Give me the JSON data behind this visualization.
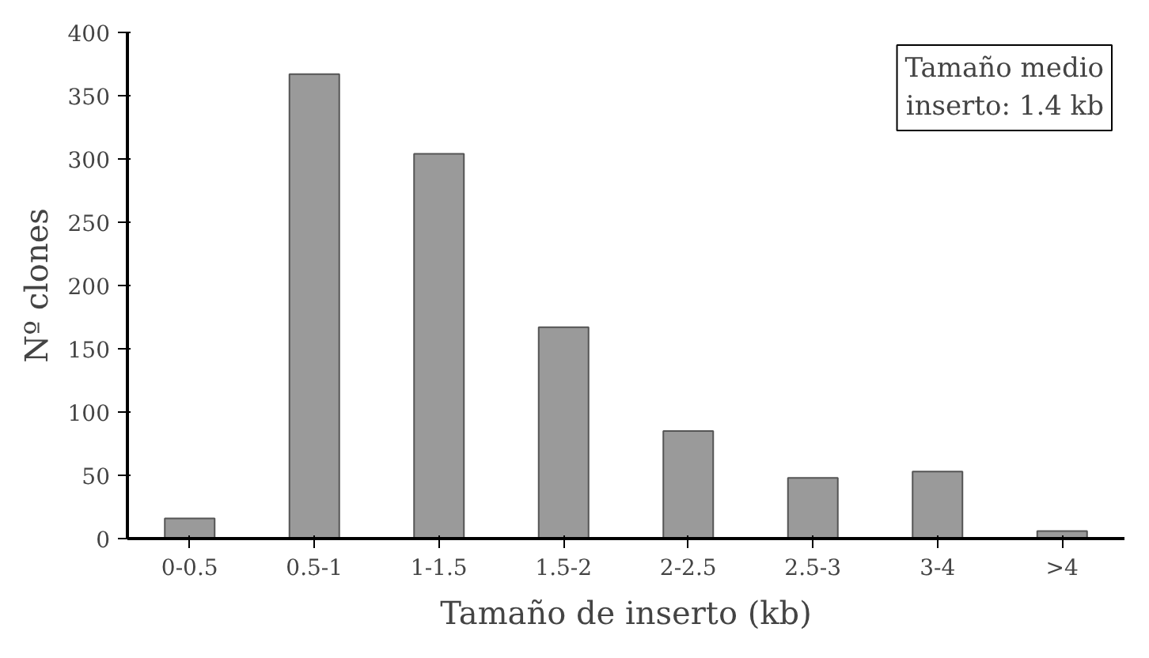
{
  "chart_data": {
    "type": "bar",
    "xlabel": "Tamaño de inserto (kb)",
    "ylabel": "Nº clones",
    "categories": [
      "0-0.5",
      "0.5-1",
      "1-1.5",
      "1.5-2",
      "2-2.5",
      "2.5-3",
      "3-4",
      ">4"
    ],
    "values": [
      16,
      367,
      304,
      167,
      85,
      48,
      53,
      6
    ],
    "color": "#9a9a9a",
    "ylim": [
      0,
      400
    ],
    "yticks": [
      0,
      50,
      100,
      150,
      200,
      250,
      300,
      350,
      400
    ],
    "grid": false,
    "annotations": [
      "Tamaño medio\ninserto: 1.4 kb"
    ]
  }
}
